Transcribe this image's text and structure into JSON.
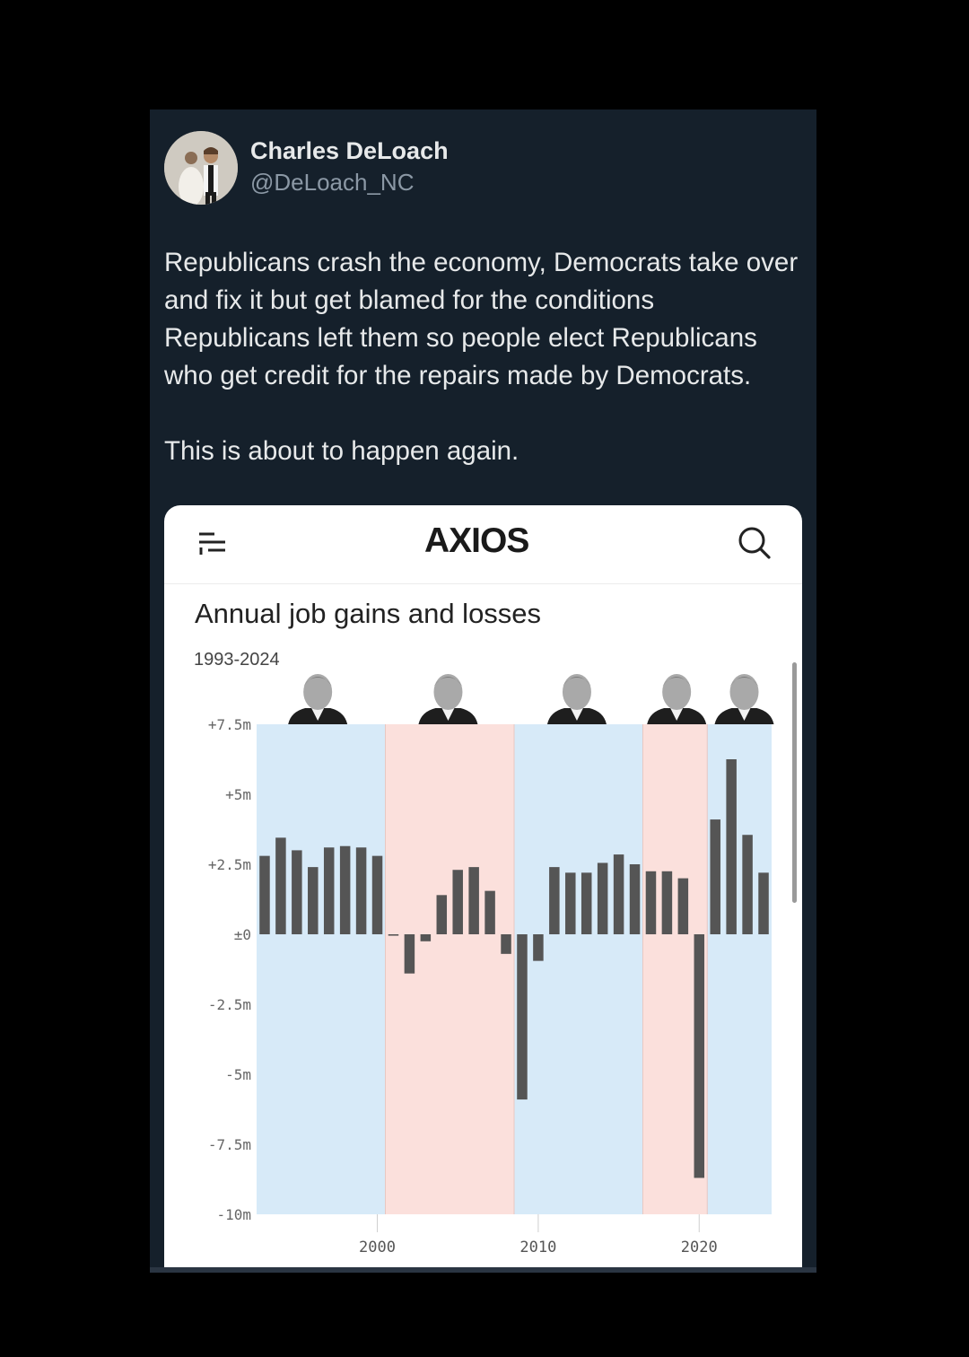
{
  "tweet": {
    "author_name": "Charles DeLoach",
    "handle": "@DeLoach_NC",
    "text_p1": "Republicans crash the economy, Democrats take over and fix it but get blamed for the conditions Republicans left them so people elect Republicans who get credit for the repairs made by Democrats.",
    "text_p2": "This is about to happen again."
  },
  "card": {
    "logo": "AXIOS",
    "menu_icon": "menu-icon",
    "search_icon": "search-icon"
  },
  "chart_data": {
    "type": "bar",
    "title": "Annual job gains and losses",
    "subtitle": "1993-2024",
    "y_ticks": [
      "+7.5m",
      "+5m",
      "+2.5m",
      "±0",
      "-2.5m",
      "-5m",
      "-7.5m",
      "-10m"
    ],
    "ylim": [
      -10,
      7.5
    ],
    "x_ticks": [
      "2000",
      "2010",
      "2020"
    ],
    "x": [
      1993,
      1994,
      1995,
      1996,
      1997,
      1998,
      1999,
      2000,
      2001,
      2002,
      2003,
      2004,
      2005,
      2006,
      2007,
      2008,
      2009,
      2010,
      2011,
      2012,
      2013,
      2014,
      2015,
      2016,
      2017,
      2018,
      2019,
      2020,
      2021,
      2022,
      2023,
      2024
    ],
    "values": [
      2.8,
      3.45,
      3.0,
      2.4,
      3.1,
      3.15,
      3.1,
      2.8,
      -0.05,
      -1.4,
      -0.25,
      1.4,
      2.3,
      2.4,
      1.55,
      -0.7,
      -5.9,
      -0.95,
      2.4,
      2.2,
      2.2,
      2.55,
      2.85,
      2.5,
      2.25,
      2.25,
      2.0,
      -8.7,
      4.1,
      6.25,
      3.55,
      2.2
    ],
    "value_unit": "millions of jobs",
    "shading": [
      {
        "from": 1992.5,
        "to": 2000.5,
        "party": "Democratic",
        "color": "#d7eaf8"
      },
      {
        "from": 2000.5,
        "to": 2008.5,
        "party": "Republican",
        "color": "#fbe0dc"
      },
      {
        "from": 2008.5,
        "to": 2016.5,
        "party": "Democratic",
        "color": "#d7eaf8"
      },
      {
        "from": 2016.5,
        "to": 2020.5,
        "party": "Republican",
        "color": "#fbe0dc"
      },
      {
        "from": 2020.5,
        "to": 2024.5,
        "party": "Democratic",
        "color": "#d7eaf8"
      }
    ],
    "bar_color": "#555555",
    "grid": false
  }
}
